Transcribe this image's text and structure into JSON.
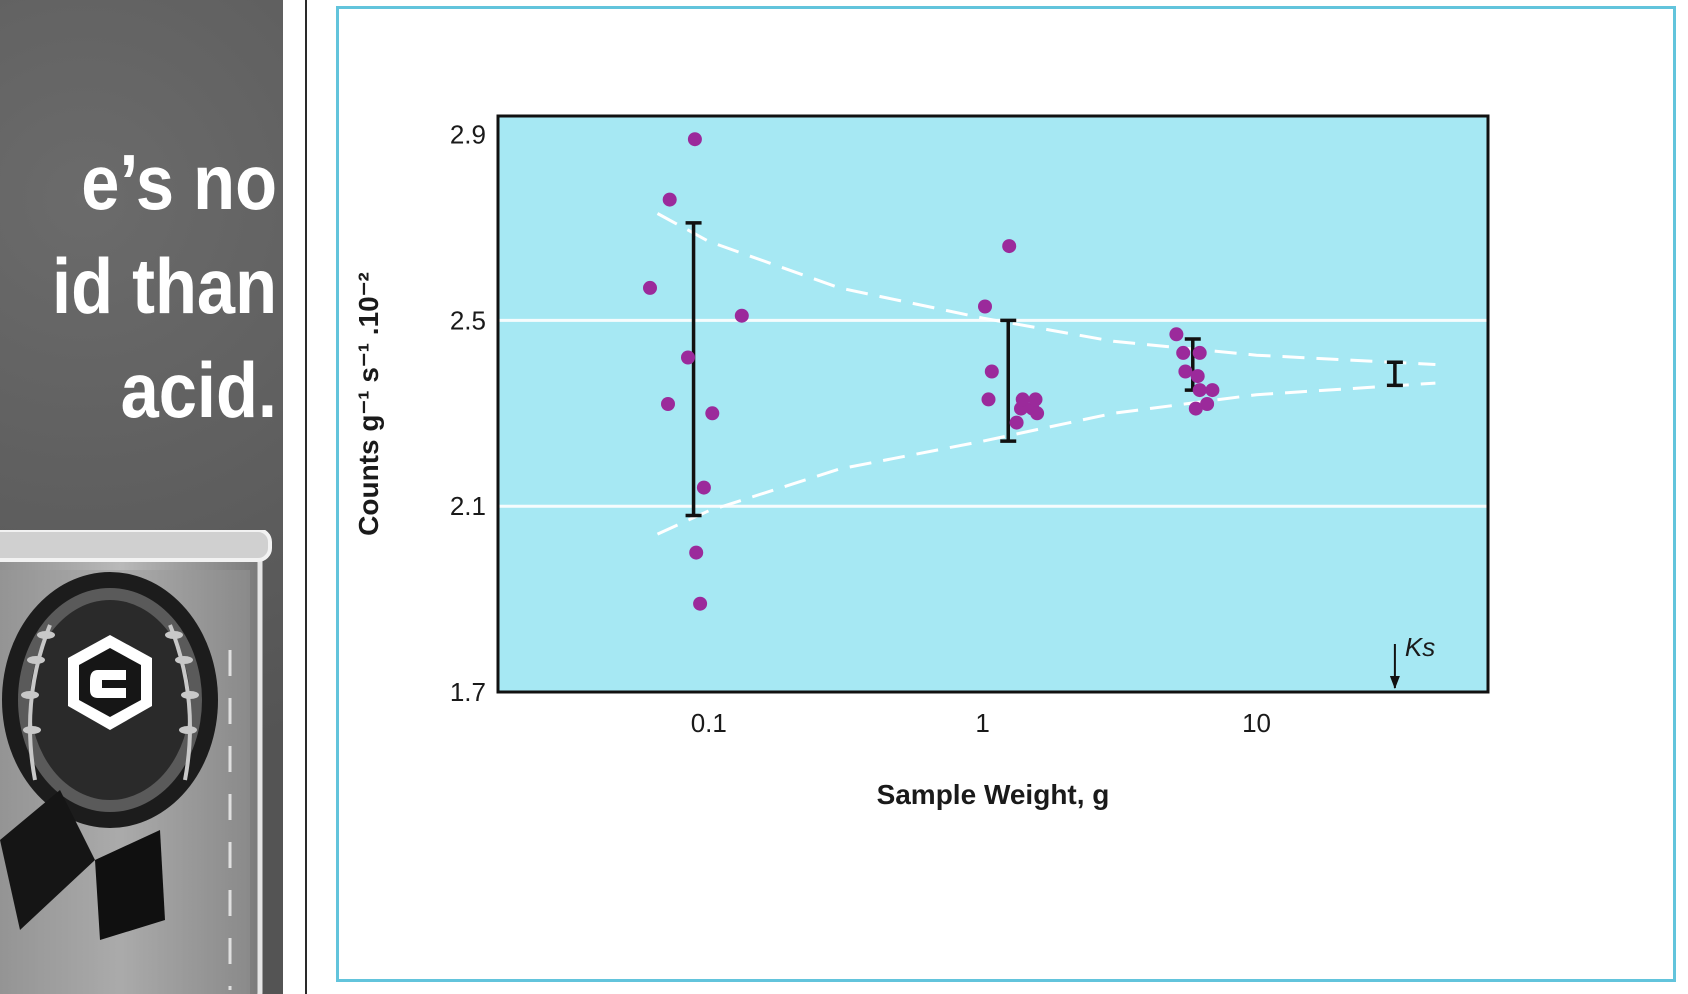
{
  "advertisement": {
    "headline_lines": [
      "e’s no",
      "id than",
      "acid."
    ]
  },
  "colors": {
    "plot_background": "#a6e8f3",
    "points": "#9b2a9b",
    "frame": "#62c4dc",
    "guide_lines": "#ffffff",
    "error_bars": "#111111"
  },
  "chart_data": {
    "type": "scatter",
    "title": "",
    "xlabel": "Sample Weight, g",
    "ylabel": "Counts g⁻¹ s⁻¹ .10⁻²",
    "x_scale": "log",
    "xlim": [
      0.017,
      70
    ],
    "ylim": [
      1.7,
      2.94
    ],
    "x_ticks": [
      {
        "value": 0.1,
        "label": "0.1"
      },
      {
        "value": 1,
        "label": "1"
      },
      {
        "value": 10,
        "label": "10"
      }
    ],
    "y_ticks": [
      {
        "value": 1.7,
        "label": "1.7"
      },
      {
        "value": 2.1,
        "label": "2.1"
      },
      {
        "value": 2.5,
        "label": "2.5"
      },
      {
        "value": 2.9,
        "label": "2.9"
      }
    ],
    "grid_y": [
      2.1,
      2.5
    ],
    "series": [
      {
        "points": [
          {
            "x": 0.089,
            "y": 2.89
          },
          {
            "x": 0.072,
            "y": 2.76
          },
          {
            "x": 0.061,
            "y": 2.57
          },
          {
            "x": 0.132,
            "y": 2.51
          },
          {
            "x": 0.084,
            "y": 2.42
          },
          {
            "x": 0.071,
            "y": 2.32
          },
          {
            "x": 0.103,
            "y": 2.3
          },
          {
            "x": 0.096,
            "y": 2.14
          },
          {
            "x": 0.09,
            "y": 2.0
          },
          {
            "x": 0.093,
            "y": 1.89
          },
          {
            "x": 1.25,
            "y": 2.66
          },
          {
            "x": 1.02,
            "y": 2.53
          },
          {
            "x": 1.08,
            "y": 2.39
          },
          {
            "x": 1.05,
            "y": 2.33
          },
          {
            "x": 1.33,
            "y": 2.28
          },
          {
            "x": 1.38,
            "y": 2.31
          },
          {
            "x": 1.4,
            "y": 2.33
          },
          {
            "x": 1.52,
            "y": 2.31
          },
          {
            "x": 1.56,
            "y": 2.33
          },
          {
            "x": 1.58,
            "y": 2.3
          },
          {
            "x": 5.1,
            "y": 2.47
          },
          {
            "x": 5.4,
            "y": 2.43
          },
          {
            "x": 5.5,
            "y": 2.39
          },
          {
            "x": 6.2,
            "y": 2.43
          },
          {
            "x": 6.1,
            "y": 2.38
          },
          {
            "x": 6.2,
            "y": 2.35
          },
          {
            "x": 6.9,
            "y": 2.35
          },
          {
            "x": 6.6,
            "y": 2.32
          },
          {
            "x": 6.0,
            "y": 2.31
          }
        ]
      }
    ],
    "error_bars": [
      {
        "x": 0.088,
        "low": 2.08,
        "high": 2.71
      },
      {
        "x": 1.24,
        "low": 2.24,
        "high": 2.5
      },
      {
        "x": 5.85,
        "low": 2.35,
        "high": 2.46
      },
      {
        "x": 32,
        "low": 2.36,
        "high": 2.41
      }
    ],
    "envelope": {
      "upper": [
        [
          0.065,
          2.73
        ],
        [
          0.1,
          2.67
        ],
        [
          0.3,
          2.57
        ],
        [
          1,
          2.505
        ],
        [
          3,
          2.455
        ],
        [
          10,
          2.425
        ],
        [
          45,
          2.405
        ]
      ],
      "lower": [
        [
          0.065,
          2.04
        ],
        [
          0.1,
          2.09
        ],
        [
          0.3,
          2.18
        ],
        [
          1,
          2.24
        ],
        [
          3,
          2.3
        ],
        [
          10,
          2.34
        ],
        [
          45,
          2.365
        ]
      ]
    },
    "annotation": {
      "label": "Ks",
      "x": 32
    }
  }
}
